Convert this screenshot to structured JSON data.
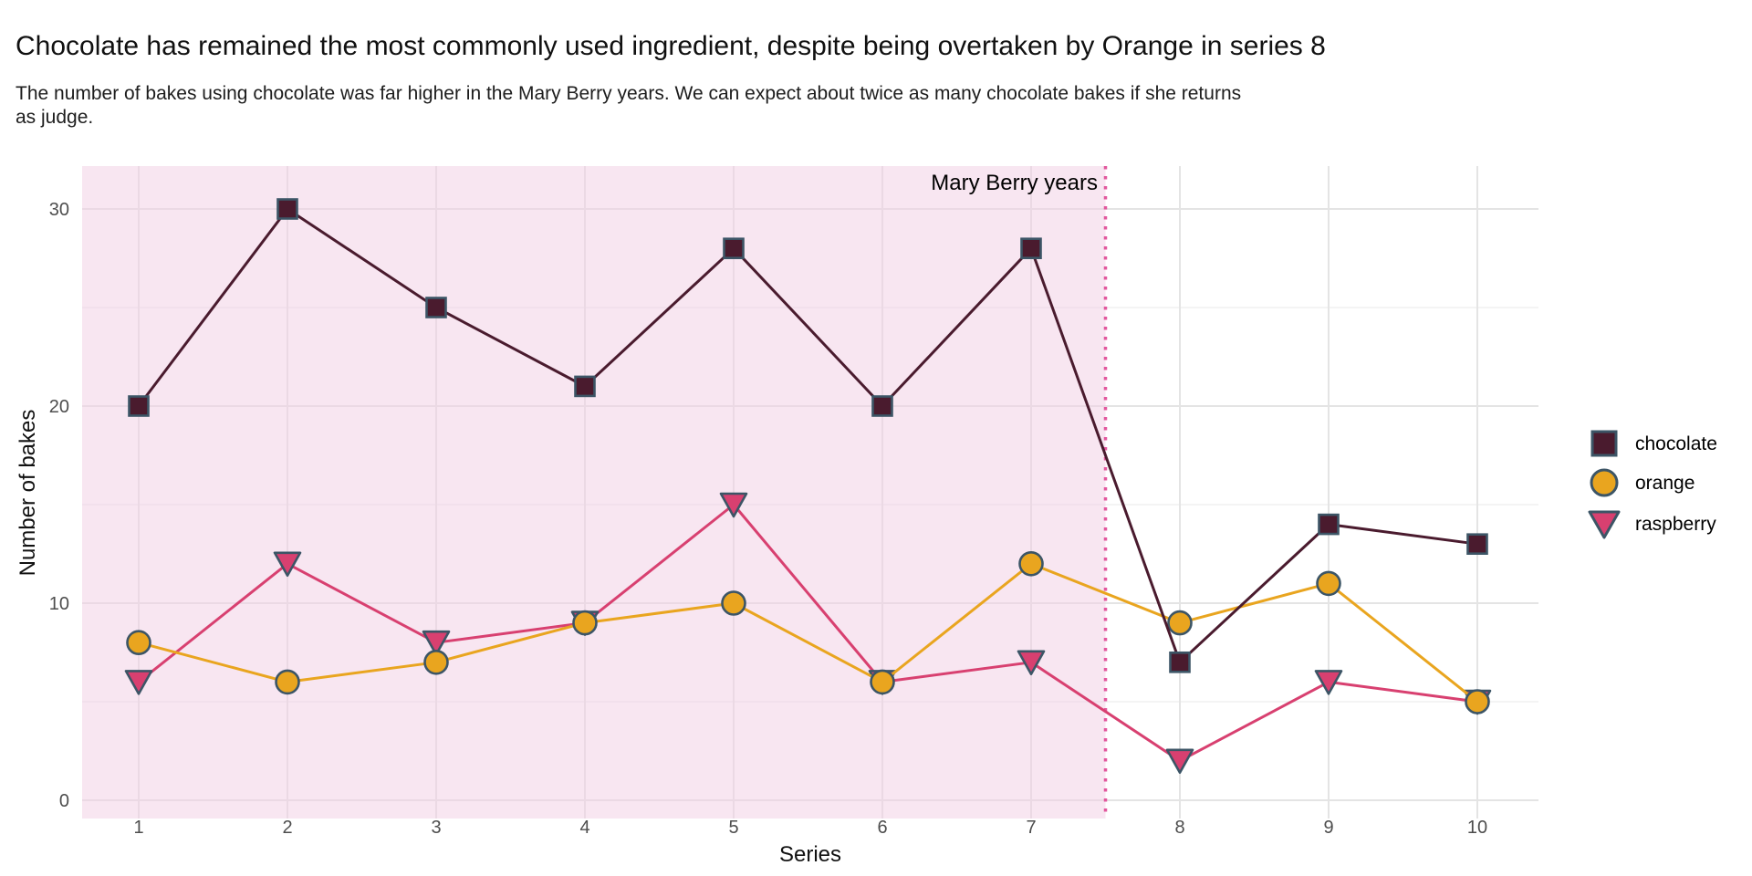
{
  "title": "Chocolate has remained the most commonly used ingredient, despite being overtaken by Orange in series 8",
  "subtitle_line1": "The number of bakes using chocolate was far higher in the Mary Berry years. We can expect about twice as many chocolate bakes if she returns",
  "subtitle_line2": "as judge.",
  "chart_data": {
    "type": "line",
    "x": [
      1,
      2,
      3,
      4,
      5,
      6,
      7,
      8,
      9,
      10
    ],
    "series": [
      {
        "name": "chocolate",
        "marker": "square",
        "color": "#4A1B2E",
        "values": [
          20,
          30,
          25,
          21,
          28,
          20,
          28,
          7,
          14,
          13
        ]
      },
      {
        "name": "orange",
        "marker": "circle",
        "color": "#E9A51F",
        "values": [
          8,
          6,
          7,
          9,
          10,
          6,
          12,
          9,
          11,
          5
        ]
      },
      {
        "name": "raspberry",
        "marker": "triangle-down",
        "color": "#D84070",
        "values": [
          6,
          12,
          8,
          9,
          15,
          6,
          7,
          2,
          6,
          5
        ]
      }
    ],
    "xlabel": "Series",
    "ylabel": "Number of bakes",
    "x_ticks": [
      1,
      2,
      3,
      4,
      5,
      6,
      7,
      8,
      9,
      10
    ],
    "y_ticks": [
      0,
      10,
      20,
      30
    ],
    "y_minor_ticks": [
      5,
      15,
      25
    ],
    "ylim": [
      0,
      30
    ],
    "grid": "major-and-minor-y-on",
    "legend_position": "right",
    "annotation": {
      "label": "Mary Berry years",
      "region_x_end": 7.5
    },
    "colors": {
      "marker_edge": "#3C5566",
      "shaded_region": "#F2CDE4",
      "divider_dotted": "#E2579D",
      "grid_major": "#E4E4E4",
      "grid_minor": "#EDEDED",
      "tick_text": "#4D4D4D",
      "axis_title_text": "#111111"
    }
  },
  "legend": {
    "items": [
      {
        "label": "chocolate"
      },
      {
        "label": "orange"
      },
      {
        "label": "raspberry"
      }
    ]
  }
}
